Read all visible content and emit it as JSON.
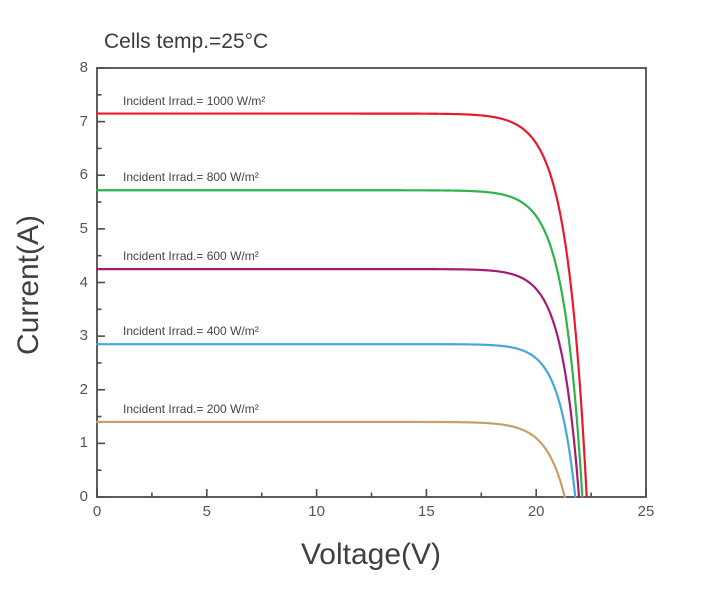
{
  "chart_data": {
    "type": "line",
    "title": "Cells temp.=25°C",
    "xlabel": "Voltage(V)",
    "ylabel": "Current(A)",
    "xlim": [
      0,
      25
    ],
    "ylim": [
      0,
      8
    ],
    "x_major_ticks": [
      0,
      5,
      10,
      15,
      20,
      25
    ],
    "x_minor_ticks": [
      2.5,
      7.5,
      12.5,
      17.5,
      22.5
    ],
    "y_major_ticks": [
      0,
      1,
      2,
      3,
      4,
      5,
      6,
      7,
      8
    ],
    "y_minor_ticks": [
      0.5,
      1.5,
      2.5,
      3.5,
      4.5,
      5.5,
      6.5,
      7.5
    ],
    "grid": false,
    "legend_position": "inline-labels-above-each-curve",
    "curve_model": "I(V) = Isc * (1 - exp((V - Voc)/knee_v))",
    "series": [
      {
        "label": "Incident Irrad.= 1000 W/m²",
        "irradiance_w_m2": 1000,
        "isc_a": 7.15,
        "voc_v": 22.3,
        "knee_v": 0.9,
        "color": "#e81a2c",
        "points": [
          [
            0,
            7.15
          ],
          [
            5,
            7.15
          ],
          [
            10,
            7.15
          ],
          [
            15,
            7.15
          ],
          [
            18,
            7.09
          ],
          [
            19,
            6.97
          ],
          [
            20,
            6.6
          ],
          [
            21,
            5.46
          ],
          [
            21.5,
            4.21
          ],
          [
            22,
            2.02
          ],
          [
            22.3,
            0
          ]
        ]
      },
      {
        "label": "Incident Irrad.= 800 W/m²",
        "irradiance_w_m2": 800,
        "isc_a": 5.72,
        "voc_v": 22.1,
        "knee_v": 0.85,
        "color": "#2eb34a",
        "points": [
          [
            0,
            5.72
          ],
          [
            5,
            5.72
          ],
          [
            10,
            5.72
          ],
          [
            15,
            5.72
          ],
          [
            18,
            5.67
          ],
          [
            19,
            5.57
          ],
          [
            20,
            5.24
          ],
          [
            21,
            4.15
          ],
          [
            21.5,
            2.9
          ],
          [
            22,
            0.64
          ],
          [
            22.1,
            0
          ]
        ]
      },
      {
        "label": "Incident Irrad.= 600 W/m²",
        "irradiance_w_m2": 600,
        "isc_a": 4.25,
        "voc_v": 21.95,
        "knee_v": 0.8,
        "color": "#a71a74",
        "points": [
          [
            0,
            4.25
          ],
          [
            5,
            4.25
          ],
          [
            10,
            4.25
          ],
          [
            15,
            4.25
          ],
          [
            18,
            4.22
          ],
          [
            19,
            4.14
          ],
          [
            20,
            3.88
          ],
          [
            21,
            2.95
          ],
          [
            21.5,
            1.83
          ],
          [
            21.95,
            0
          ]
        ]
      },
      {
        "label": "Incident Irrad.= 400 W/m²",
        "irradiance_w_m2": 400,
        "isc_a": 2.85,
        "voc_v": 21.78,
        "knee_v": 0.75,
        "color": "#44a7e0",
        "points": [
          [
            0,
            2.85
          ],
          [
            5,
            2.85
          ],
          [
            10,
            2.85
          ],
          [
            15,
            2.85
          ],
          [
            18,
            2.83
          ],
          [
            19,
            2.78
          ],
          [
            20,
            2.58
          ],
          [
            21,
            1.84
          ],
          [
            21.5,
            0.89
          ],
          [
            21.78,
            0
          ]
        ]
      },
      {
        "label": "Incident Irrad.= 200 W/m²",
        "irradiance_w_m2": 200,
        "isc_a": 1.4,
        "voc_v": 21.3,
        "knee_v": 0.85,
        "color": "#c9a063",
        "points": [
          [
            0,
            1.4
          ],
          [
            5,
            1.4
          ],
          [
            10,
            1.4
          ],
          [
            15,
            1.4
          ],
          [
            18,
            1.37
          ],
          [
            19,
            1.31
          ],
          [
            20,
            1.1
          ],
          [
            21,
            0.42
          ],
          [
            21.3,
            0
          ]
        ]
      }
    ]
  },
  "colors": {
    "background": "#ffffff",
    "axis": "#4b4c4e",
    "tick_labels": "#55565a",
    "title_text": "#3b3b3b",
    "axis_title_text": "#3f4040",
    "series_label_text": "#454545"
  }
}
